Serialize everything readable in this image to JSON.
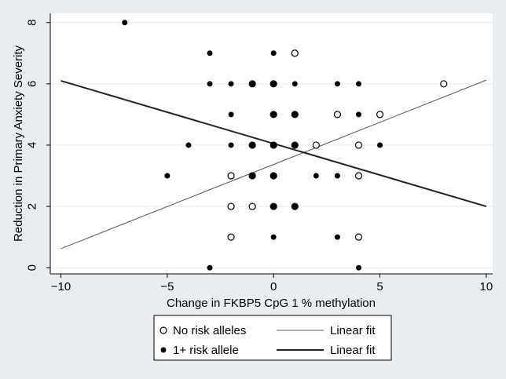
{
  "chart_data": {
    "type": "scatter",
    "xlabel": "Change in FKBP5 CpG 1 % methylation",
    "ylabel": "Reduction in Primary Anxiety Severity",
    "xlim": [
      -10.5,
      10.3
    ],
    "ylim": [
      -0.2,
      8.3
    ],
    "xticks": [
      -10,
      -5,
      0,
      5,
      10
    ],
    "yticks": [
      0,
      2,
      4,
      6,
      8
    ],
    "grid": "horizontal",
    "legend_position": "bottom",
    "series": [
      {
        "name": "No risk alleles",
        "marker": "hollow-circle",
        "points": [
          [
            1,
            7
          ],
          [
            -1,
            6
          ],
          [
            0,
            6
          ],
          [
            8,
            6
          ],
          [
            0,
            5
          ],
          [
            1,
            5
          ],
          [
            3,
            5
          ],
          [
            5,
            5
          ],
          [
            -1,
            4
          ],
          [
            0,
            4
          ],
          [
            1,
            4
          ],
          [
            2,
            4
          ],
          [
            4,
            4
          ],
          [
            -2,
            3
          ],
          [
            -1,
            3
          ],
          [
            0,
            3
          ],
          [
            4,
            3
          ],
          [
            -2,
            2
          ],
          [
            -1,
            2
          ],
          [
            0,
            2
          ],
          [
            1,
            2
          ],
          [
            -2,
            1
          ],
          [
            4,
            1
          ]
        ]
      },
      {
        "name": "1+ risk allele",
        "marker": "filled-circle",
        "points": [
          [
            -7,
            8
          ],
          [
            -3,
            7
          ],
          [
            0,
            7
          ],
          [
            -3,
            6
          ],
          [
            -2,
            6
          ],
          [
            -1,
            6
          ],
          [
            0,
            6
          ],
          [
            1,
            6
          ],
          [
            3,
            6
          ],
          [
            4,
            6
          ],
          [
            -2,
            5
          ],
          [
            0,
            5
          ],
          [
            1,
            5
          ],
          [
            4,
            5
          ],
          [
            -4,
            4
          ],
          [
            -2,
            4
          ],
          [
            -1,
            4
          ],
          [
            0,
            4
          ],
          [
            1,
            4
          ],
          [
            5,
            4
          ],
          [
            -5,
            3
          ],
          [
            -1,
            3
          ],
          [
            0,
            3
          ],
          [
            2,
            3
          ],
          [
            3,
            3
          ],
          [
            0,
            2
          ],
          [
            1,
            2
          ],
          [
            0,
            1
          ],
          [
            3,
            1
          ],
          [
            -3,
            0
          ],
          [
            4,
            0
          ]
        ]
      },
      {
        "name": "Linear fit",
        "marker": "line-thin",
        "points": [
          [
            -10,
            0.62
          ],
          [
            10,
            6.12
          ]
        ]
      },
      {
        "name": "Linear fit",
        "marker": "line-thick",
        "points": [
          [
            -10,
            6.1
          ],
          [
            10,
            2.0
          ]
        ]
      }
    ]
  },
  "legend": {
    "items": [
      {
        "label": "No risk alleles"
      },
      {
        "label": "Linear fit"
      },
      {
        "label": "1+ risk allele"
      },
      {
        "label": "Linear fit"
      }
    ]
  }
}
